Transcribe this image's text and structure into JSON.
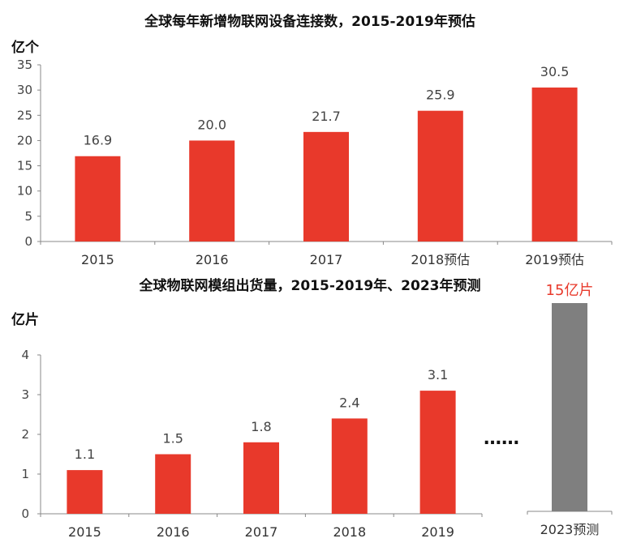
{
  "chart_data": [
    {
      "type": "bar",
      "title": "全球每年新增物联网设备连接数，2015-2019年预估",
      "ylabel": "亿个",
      "xlabel": "",
      "categories": [
        "2015",
        "2016",
        "2017",
        "2018预估",
        "2019预估"
      ],
      "values": [
        16.9,
        20.0,
        21.7,
        25.9,
        30.5
      ],
      "value_labels": [
        "16.9",
        "20.0",
        "21.7",
        "25.9",
        "30.5"
      ],
      "ylim": [
        0,
        35
      ],
      "yticks": [
        "0",
        "5",
        "10",
        "15",
        "20",
        "25",
        "30",
        "35"
      ],
      "grid": false,
      "legend": "none",
      "color": "#E8392B"
    },
    {
      "type": "bar",
      "title": "全球物联网模组出货量，2015-2019年、2023年预测",
      "ylabel": "亿片",
      "xlabel": "",
      "categories": [
        "2015",
        "2016",
        "2017",
        "2018",
        "2019"
      ],
      "values": [
        1.1,
        1.5,
        1.8,
        2.4,
        3.1
      ],
      "value_labels": [
        "1.1",
        "1.5",
        "1.8",
        "2.4",
        "3.1"
      ],
      "ylim": [
        0,
        4
      ],
      "yticks": [
        "0",
        "1",
        "2",
        "3",
        "4"
      ],
      "grid": false,
      "legend": "none",
      "color": "#E8392B",
      "break_marker": "……",
      "forecast": {
        "category": "2023预测",
        "value": 15,
        "value_label": "15亿片",
        "color": "#7F7F7F",
        "label_color": "#E8392B"
      }
    }
  ]
}
